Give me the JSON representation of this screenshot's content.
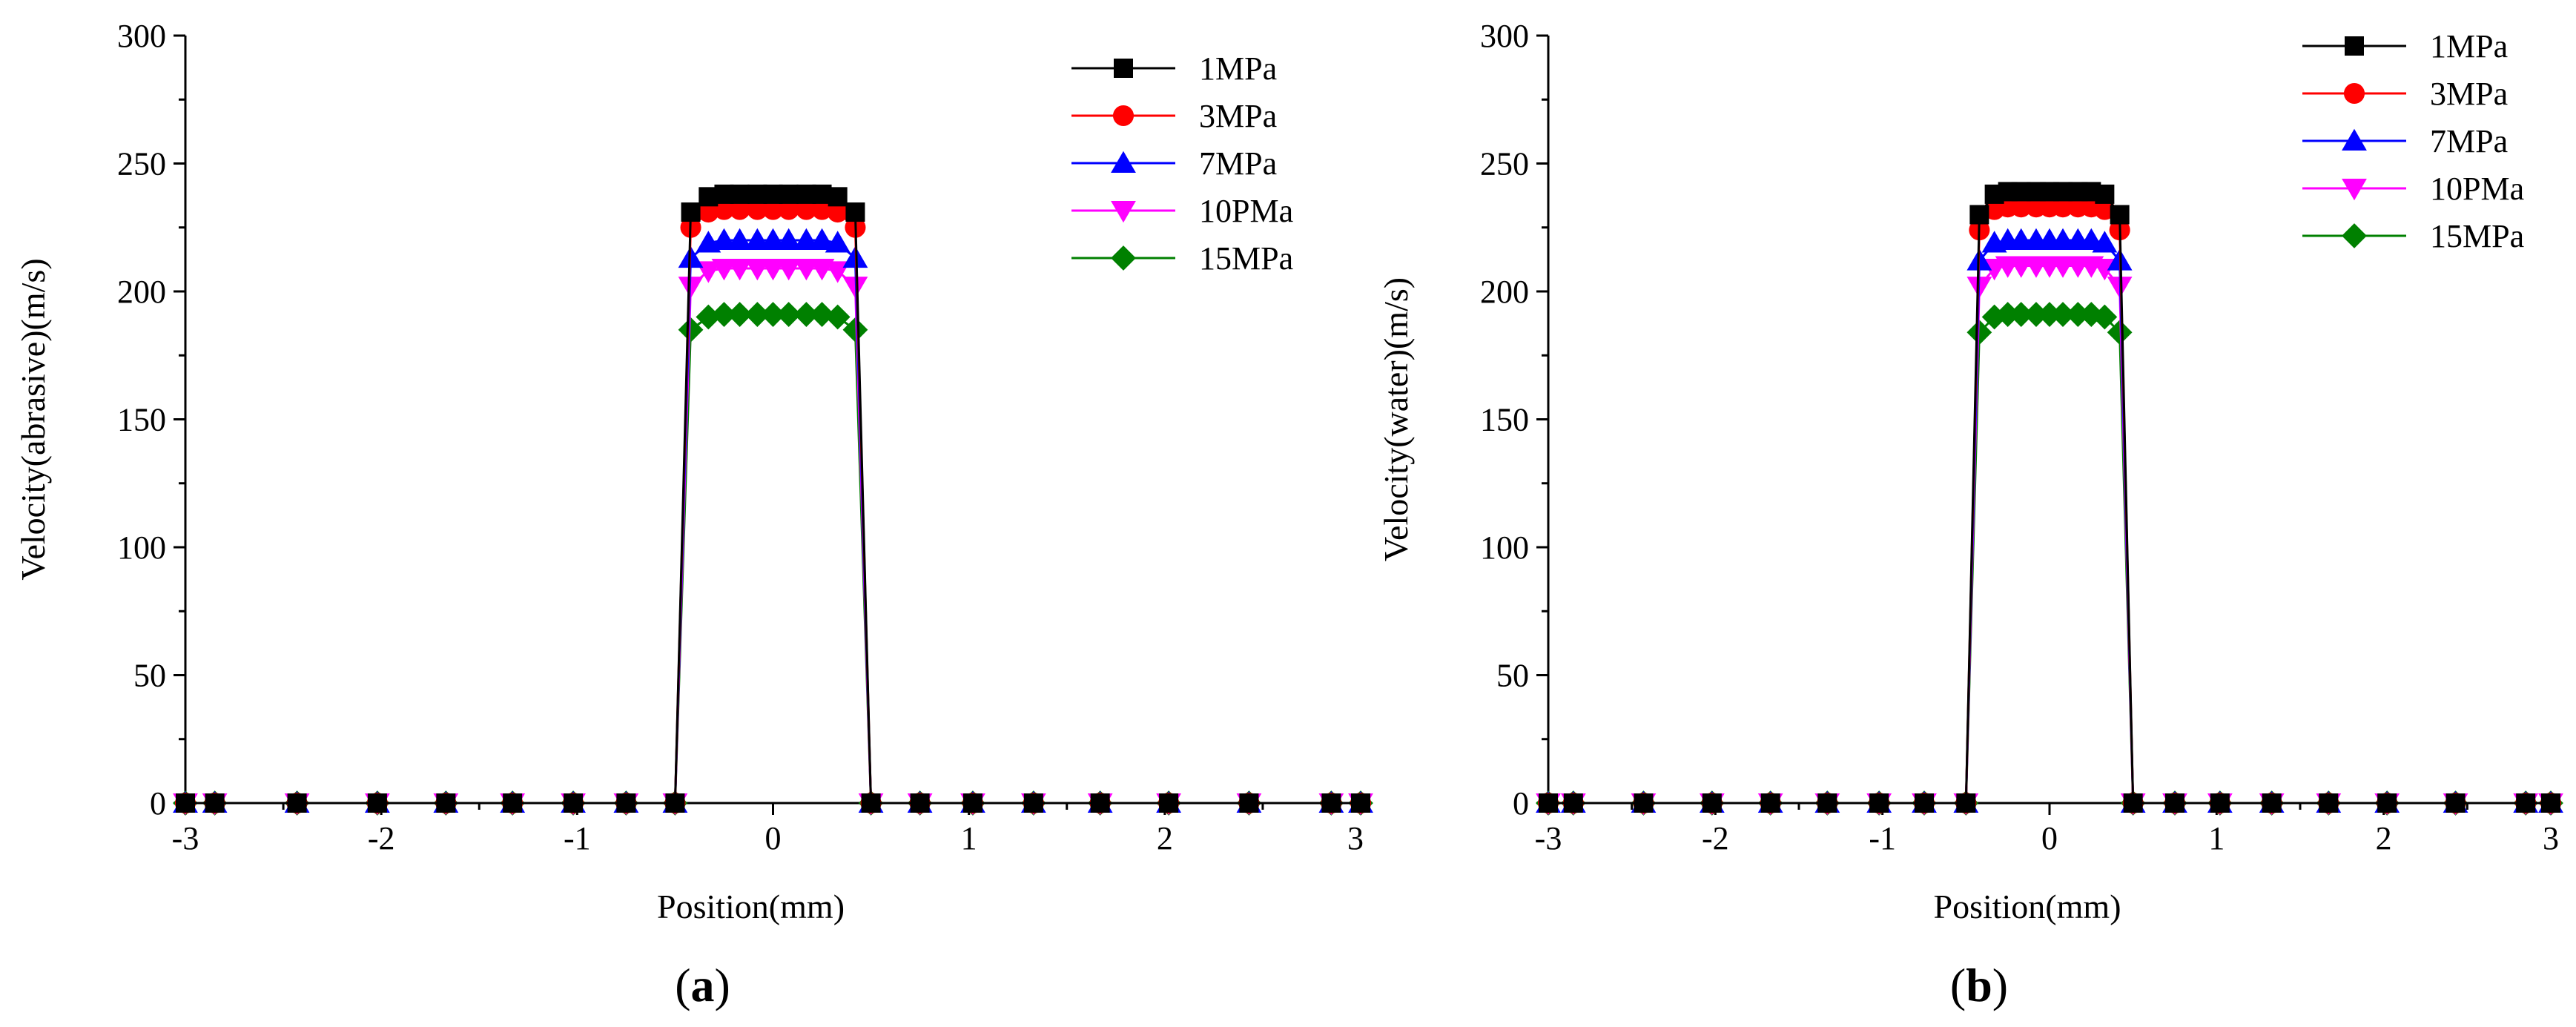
{
  "chart_data": [
    {
      "type": "line",
      "panel_label": "a",
      "xlabel": "Position(mm)",
      "ylabel": "Velocity(abrasive)(m/s)",
      "xlim": [
        -3,
        3
      ],
      "ylim": [
        0,
        300
      ],
      "xticks": [
        -3,
        -2,
        -1,
        0,
        1,
        2,
        3
      ],
      "xtick_labels": [
        "-3",
        "-2",
        "-1",
        "0",
        "1",
        "2",
        "3"
      ],
      "yticks": [
        0,
        50,
        100,
        150,
        200,
        250,
        300
      ],
      "ytick_labels": [
        "0",
        "50",
        "100",
        "150",
        "200",
        "250",
        "300"
      ],
      "legend_position": "top-right",
      "x": [
        -3,
        -2.85,
        -2.43,
        -2.02,
        -1.67,
        -1.33,
        -1.02,
        -0.75,
        -0.5,
        -0.42,
        -0.33,
        -0.25,
        -0.17,
        -0.08,
        0,
        0.08,
        0.17,
        0.25,
        0.33,
        0.42,
        0.5,
        0.75,
        1.02,
        1.33,
        1.67,
        2.02,
        2.43,
        2.85,
        3
      ],
      "series": [
        {
          "name": "1MPa",
          "color": "#000000",
          "marker": "square",
          "values": [
            0,
            0,
            0,
            0,
            0,
            0,
            0,
            0,
            0,
            231,
            237,
            238,
            238,
            238,
            238,
            238,
            238,
            238,
            237,
            231,
            0,
            0,
            0,
            0,
            0,
            0,
            0,
            0,
            0
          ]
        },
        {
          "name": "3MPa",
          "color": "#ff0000",
          "marker": "circle",
          "values": [
            0,
            0,
            0,
            0,
            0,
            0,
            0,
            0,
            0,
            225,
            231,
            232,
            232,
            232,
            232,
            232,
            232,
            232,
            231,
            225,
            0,
            0,
            0,
            0,
            0,
            0,
            0,
            0,
            0
          ]
        },
        {
          "name": "7MPa",
          "color": "#0000ff",
          "marker": "triangle-up",
          "values": [
            0,
            0,
            0,
            0,
            0,
            0,
            0,
            0,
            0,
            213,
            219,
            220,
            220,
            220,
            220,
            220,
            220,
            220,
            219,
            213,
            0,
            0,
            0,
            0,
            0,
            0,
            0,
            0,
            0
          ]
        },
        {
          "name": "10PMa",
          "color": "#ff00ff",
          "marker": "triangle-down",
          "values": [
            0,
            0,
            0,
            0,
            0,
            0,
            0,
            0,
            0,
            202,
            208,
            209,
            209,
            209,
            209,
            209,
            209,
            209,
            208,
            202,
            0,
            0,
            0,
            0,
            0,
            0,
            0,
            0,
            0
          ]
        },
        {
          "name": "15MPa",
          "color": "#008000",
          "marker": "diamond",
          "values": [
            0,
            0,
            0,
            0,
            0,
            0,
            0,
            0,
            0,
            185,
            190,
            191,
            191,
            191,
            191,
            191,
            191,
            191,
            190,
            185,
            0,
            0,
            0,
            0,
            0,
            0,
            0,
            0,
            0
          ]
        }
      ]
    },
    {
      "type": "line",
      "panel_label": "b",
      "xlabel": "Position(mm)",
      "ylabel": "Velocity(water)(m/s)",
      "xlim": [
        -3,
        3
      ],
      "ylim": [
        0,
        300
      ],
      "xticks": [
        -3,
        -2,
        -1,
        0,
        1,
        2,
        3
      ],
      "xtick_labels": [
        "-3",
        "-2",
        "-1",
        "0",
        "1",
        "2",
        "3"
      ],
      "yticks": [
        0,
        50,
        100,
        150,
        200,
        250,
        300
      ],
      "ytick_labels": [
        "0",
        "50",
        "100",
        "150",
        "200",
        "250",
        "300"
      ],
      "legend_position": "top-right",
      "x": [
        -3,
        -2.85,
        -2.43,
        -2.02,
        -1.67,
        -1.33,
        -1.02,
        -0.75,
        -0.5,
        -0.42,
        -0.33,
        -0.25,
        -0.17,
        -0.08,
        0,
        0.08,
        0.17,
        0.25,
        0.33,
        0.42,
        0.5,
        0.75,
        1.02,
        1.33,
        1.67,
        2.02,
        2.43,
        2.85,
        3
      ],
      "series": [
        {
          "name": "1MPa",
          "color": "#000000",
          "marker": "square",
          "values": [
            0,
            0,
            0,
            0,
            0,
            0,
            0,
            0,
            0,
            230,
            238,
            239,
            239,
            239,
            239,
            239,
            239,
            239,
            238,
            230,
            0,
            0,
            0,
            0,
            0,
            0,
            0,
            0,
            0
          ]
        },
        {
          "name": "3MPa",
          "color": "#ff0000",
          "marker": "circle",
          "values": [
            0,
            0,
            0,
            0,
            0,
            0,
            0,
            0,
            0,
            224,
            232,
            233,
            233,
            233,
            233,
            233,
            233,
            233,
            232,
            224,
            0,
            0,
            0,
            0,
            0,
            0,
            0,
            0,
            0
          ]
        },
        {
          "name": "7MPa",
          "color": "#0000ff",
          "marker": "triangle-up",
          "values": [
            0,
            0,
            0,
            0,
            0,
            0,
            0,
            0,
            0,
            212,
            219,
            220,
            220,
            220,
            220,
            220,
            220,
            220,
            219,
            212,
            0,
            0,
            0,
            0,
            0,
            0,
            0,
            0,
            0
          ]
        },
        {
          "name": "10PMa",
          "color": "#ff00ff",
          "marker": "triangle-down",
          "values": [
            0,
            0,
            0,
            0,
            0,
            0,
            0,
            0,
            0,
            202,
            209,
            210,
            210,
            210,
            210,
            210,
            210,
            210,
            209,
            202,
            0,
            0,
            0,
            0,
            0,
            0,
            0,
            0,
            0
          ]
        },
        {
          "name": "15MPa",
          "color": "#008000",
          "marker": "diamond",
          "values": [
            0,
            0,
            0,
            0,
            0,
            0,
            0,
            0,
            0,
            184,
            190,
            191,
            191,
            191,
            191,
            191,
            191,
            191,
            190,
            184,
            0,
            0,
            0,
            0,
            0,
            0,
            0,
            0,
            0
          ]
        }
      ]
    }
  ]
}
